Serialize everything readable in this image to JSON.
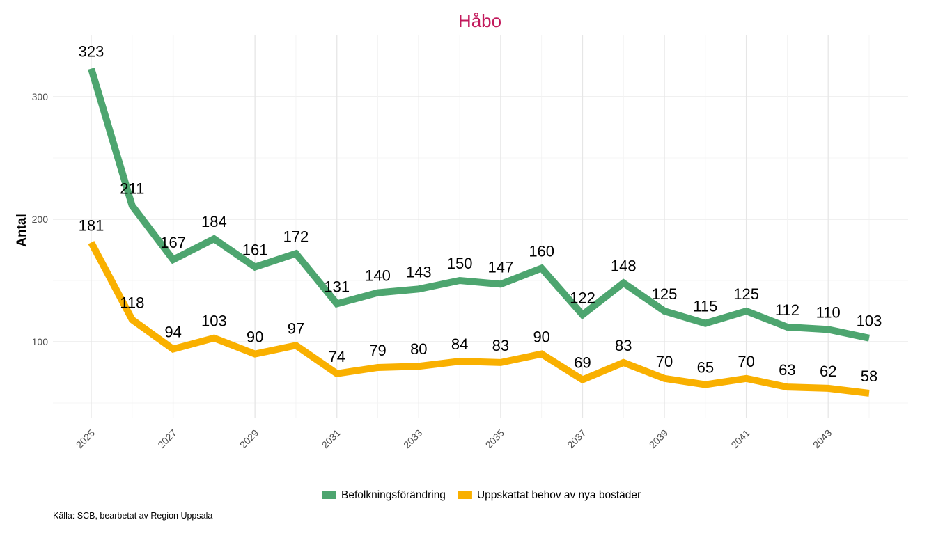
{
  "chart_data": {
    "type": "line",
    "title": "Håbo",
    "xlabel": "",
    "ylabel": "Antal",
    "x": [
      2025,
      2026,
      2027,
      2028,
      2029,
      2030,
      2031,
      2032,
      2033,
      2034,
      2035,
      2036,
      2037,
      2038,
      2039,
      2040,
      2041,
      2042,
      2043,
      2044
    ],
    "x_tick_labels": [
      "2025",
      "2027",
      "2029",
      "2031",
      "2033",
      "2035",
      "2037",
      "2039",
      "2041",
      "2043"
    ],
    "y_tick_labels": [
      "100",
      "200",
      "300"
    ],
    "ylim": [
      38,
      350
    ],
    "grid": true,
    "legend_position": "bottom",
    "series": [
      {
        "name": "Befolkningsförändring",
        "color": "#4DA56F",
        "values": [
          323,
          211,
          167,
          184,
          161,
          172,
          131,
          140,
          143,
          150,
          147,
          160,
          122,
          148,
          125,
          115,
          125,
          112,
          110,
          103
        ]
      },
      {
        "name": "Uppskattat behov av nya bostäder",
        "color": "#F9B000",
        "values": [
          181,
          118,
          94,
          103,
          90,
          97,
          74,
          79,
          80,
          84,
          83,
          90,
          69,
          83,
          70,
          65,
          70,
          63,
          62,
          58
        ]
      }
    ],
    "title_color": "#C2185B",
    "caption": "Källa: SCB, bearbetat av Region Uppsala"
  }
}
